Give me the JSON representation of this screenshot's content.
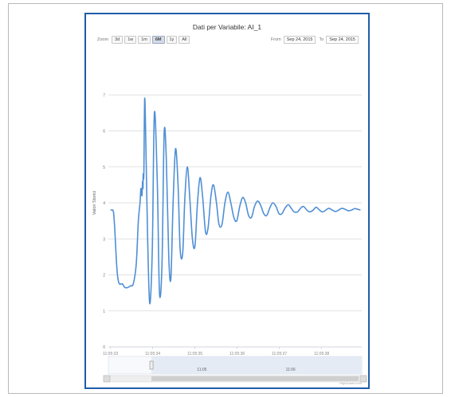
{
  "chart_data": {
    "type": "line",
    "title": "Dati per Variabile: AI_1",
    "ylabel": "Valori Storici",
    "xlabel": "",
    "ylim": [
      0,
      8
    ],
    "yticks": [
      1,
      2,
      3,
      4,
      5,
      6,
      7
    ],
    "xticks": [
      "11:05:33",
      "11:05:34",
      "11:05:35",
      "11:05:36",
      "11:05:37",
      "11:05:38"
    ],
    "grid": "horizontal",
    "legend": "none",
    "series": [
      {
        "color": "#4f8fd6",
        "x": [
          0.0,
          0.03,
          0.07,
          0.1,
          0.14,
          0.17,
          0.21,
          0.28,
          0.34,
          0.41,
          0.48,
          0.54,
          0.61,
          0.66,
          0.7,
          0.72,
          0.745,
          0.76,
          0.77,
          0.775,
          0.79,
          0.81,
          0.84,
          0.88,
          0.93,
          0.99,
          1.04,
          1.11,
          1.16,
          1.22,
          1.27,
          1.32,
          1.38,
          1.43,
          1.48,
          1.54,
          1.6,
          1.65,
          1.71,
          1.76,
          1.82,
          1.88,
          1.94,
          2.0,
          2.06,
          2.12,
          2.18,
          2.25,
          2.31,
          2.38,
          2.44,
          2.51,
          2.57,
          2.64,
          2.71,
          2.78,
          2.85,
          2.92,
          2.99,
          3.06,
          3.13,
          3.2,
          3.27,
          3.34,
          3.41,
          3.48,
          3.55,
          3.63,
          3.7,
          3.77,
          3.84,
          3.92,
          3.99,
          4.06,
          4.13,
          4.21,
          4.28,
          4.35,
          4.43,
          4.5,
          4.57,
          4.65,
          4.72,
          4.8,
          4.87,
          4.95,
          5.02,
          5.1,
          5.17,
          5.25,
          5.33,
          5.4,
          5.48,
          5.56,
          5.63,
          5.71,
          5.78,
          5.86,
          5.92
        ],
        "y": [
          3.8,
          3.8,
          3.75,
          3.3,
          2.4,
          1.95,
          1.75,
          1.75,
          1.65,
          1.65,
          1.7,
          1.75,
          2.3,
          3.5,
          4.0,
          4.4,
          4.2,
          4.6,
          4.4,
          4.8,
          4.8,
          6.9,
          5.5,
          3.0,
          1.2,
          2.7,
          6.5,
          4.5,
          1.5,
          2.3,
          5.9,
          5.3,
          2.5,
          1.9,
          3.9,
          5.5,
          4.5,
          2.7,
          2.6,
          4.1,
          5.0,
          4.1,
          3.0,
          2.8,
          4.0,
          4.7,
          4.2,
          3.2,
          3.3,
          4.2,
          4.5,
          4.0,
          3.4,
          3.4,
          4.0,
          4.3,
          4.0,
          3.6,
          3.5,
          3.9,
          4.15,
          4.0,
          3.65,
          3.6,
          3.9,
          4.05,
          3.95,
          3.7,
          3.65,
          3.85,
          4.0,
          3.9,
          3.7,
          3.7,
          3.85,
          3.95,
          3.85,
          3.75,
          3.75,
          3.85,
          3.9,
          3.8,
          3.75,
          3.8,
          3.88,
          3.8,
          3.75,
          3.8,
          3.85,
          3.8,
          3.76,
          3.8,
          3.85,
          3.82,
          3.78,
          3.8,
          3.84,
          3.82,
          3.8
        ]
      }
    ]
  },
  "range_selector": {
    "zoom_label": "Zoom",
    "buttons": [
      "3d",
      "1w",
      "1m",
      "6M",
      "1y",
      "All"
    ],
    "selected": "6M",
    "from_label": "From",
    "from_value": "Sep 24, 2015",
    "to_label": "To",
    "to_value": "Sep 24, 2015"
  },
  "navigator": {
    "labels": [
      "11:05",
      "11:06"
    ],
    "selection_start": 0.17,
    "selection_end": 1.0
  },
  "credit": "Highcharts.com",
  "colors": {
    "frame": "#1f5ea8",
    "line": "#4f8fd6",
    "grid": "#d9d9d9"
  }
}
